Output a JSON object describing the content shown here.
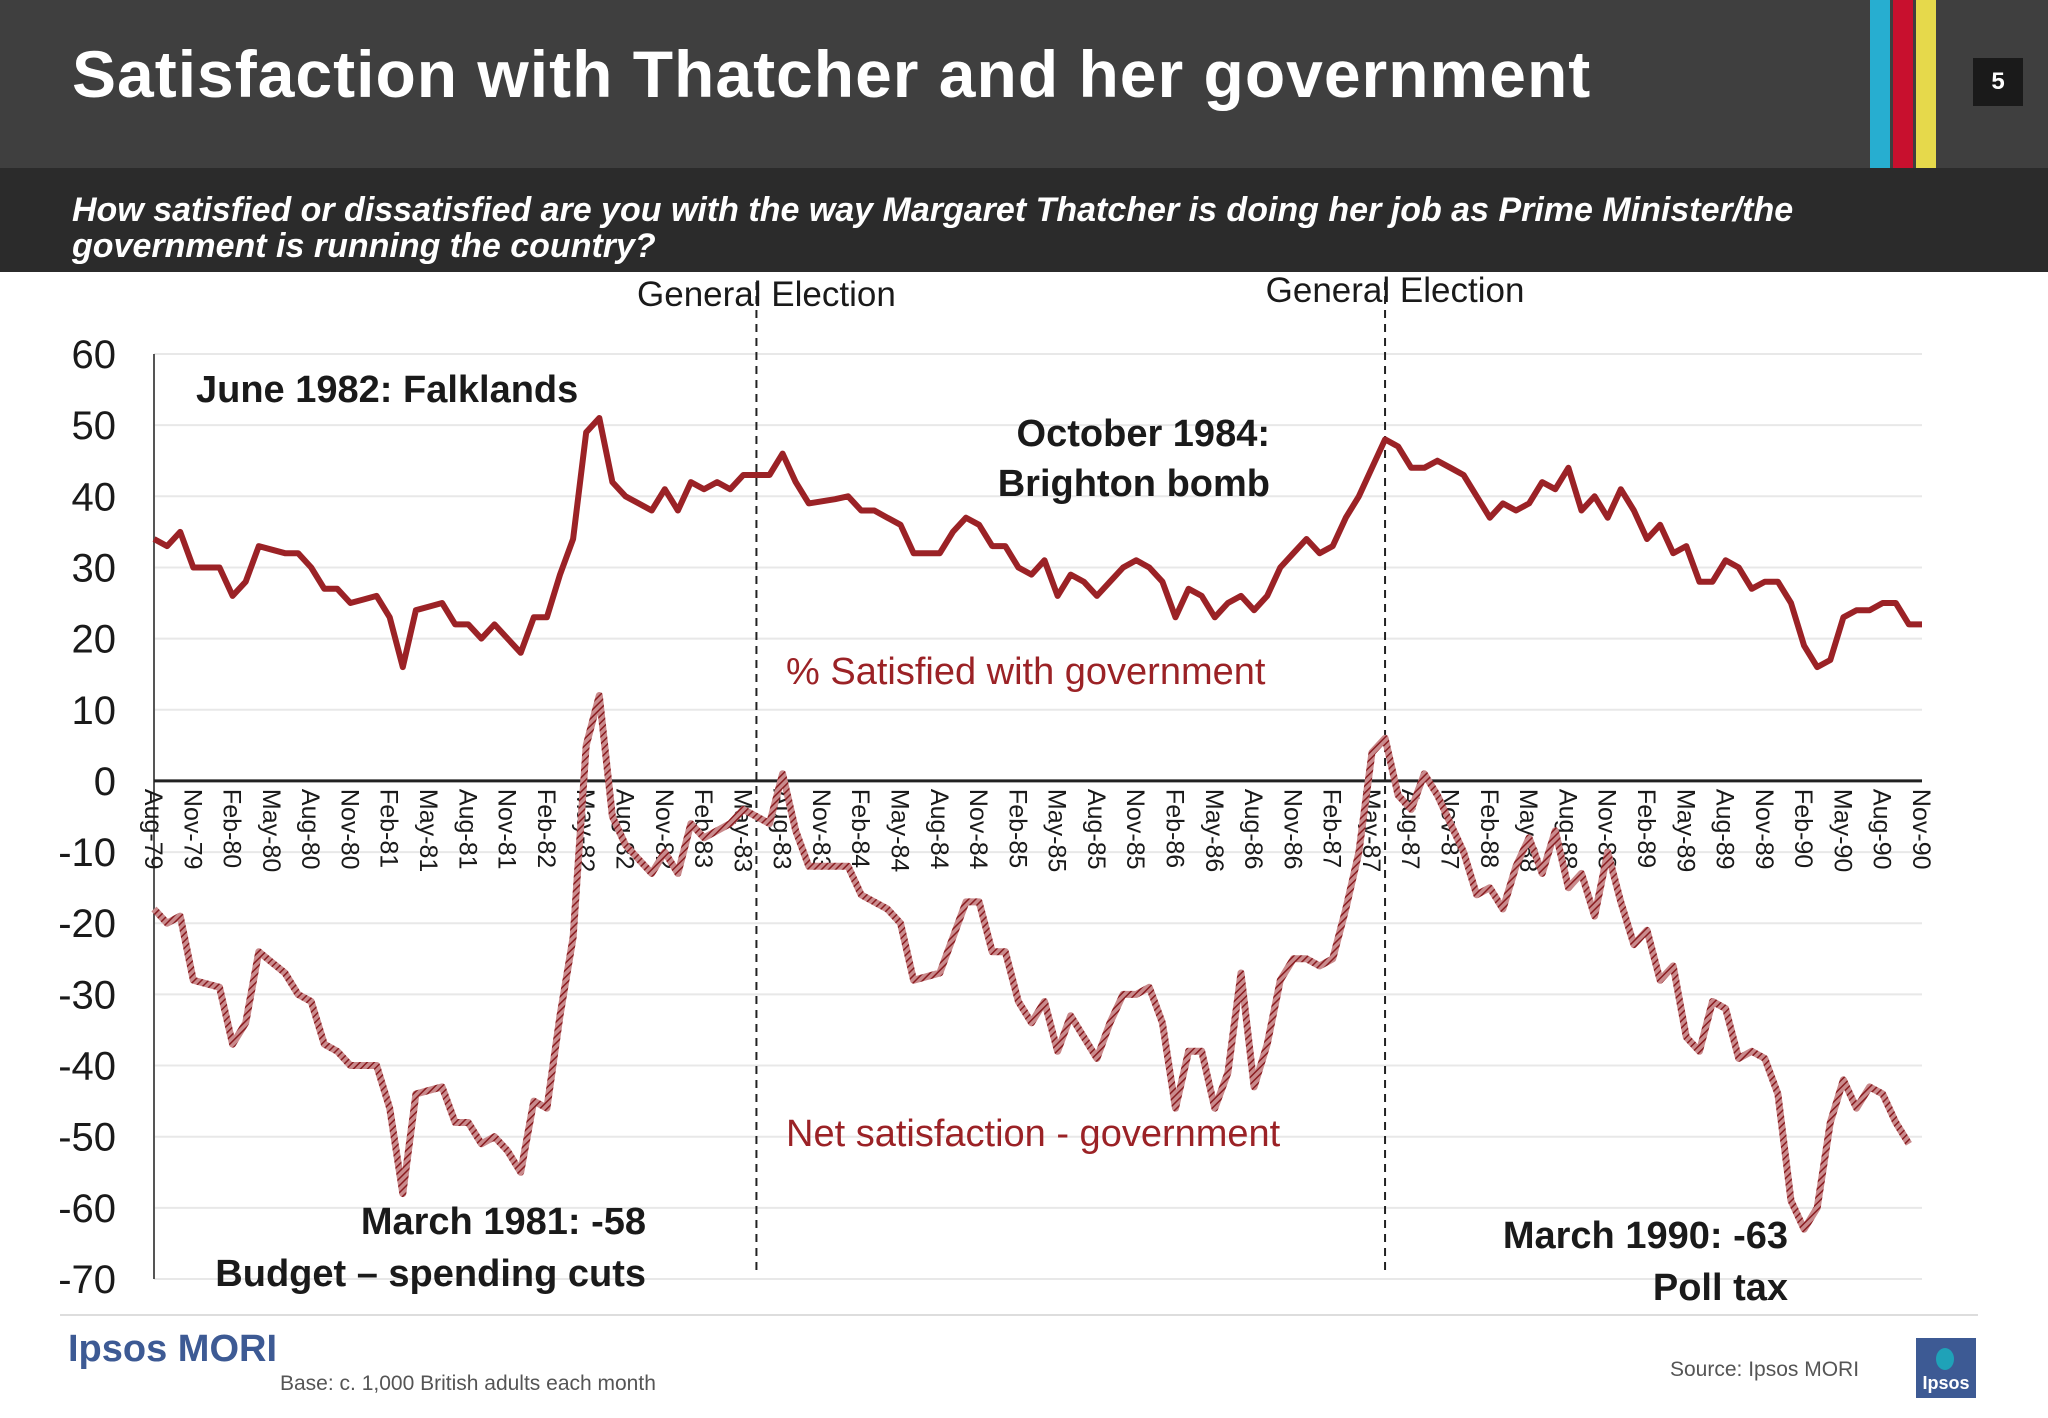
{
  "header": {
    "title": "Satisfaction with Thatcher and her government",
    "page_number": "5",
    "stripe_colors": [
      "#27aed0",
      "#c8102e",
      "#e6d94b"
    ]
  },
  "question": "How satisfied or dissatisfied are you with the way Margaret Thatcher is doing her job as Prime Minister/the government is running the country?",
  "footer": {
    "brand": "Ipsos MORI",
    "base": "Base: c. 1,000 British adults each month",
    "source": "Source: Ipsos MORI",
    "logo_text": "Ipsos"
  },
  "colors": {
    "series": "#9b2226",
    "gridline": "#e8e8e8",
    "text": "#1a1a1a"
  },
  "chart_data": {
    "type": "line",
    "title": "",
    "xlabel": "",
    "ylabel": "",
    "ylim": [
      -70,
      60
    ],
    "yticks": [
      60,
      50,
      40,
      30,
      20,
      10,
      0,
      -10,
      -20,
      -30,
      -40,
      -50,
      -60,
      -70
    ],
    "grid": true,
    "x_tick_labels": [
      "Aug-79",
      "Nov-79",
      "Feb-80",
      "May-80",
      "Aug-80",
      "Nov-80",
      "Feb-81",
      "May-81",
      "Aug-81",
      "Nov-81",
      "Feb-82",
      "May-82",
      "Aug-82",
      "Nov-82",
      "Feb-83",
      "May-83",
      "Aug-83",
      "Nov-83",
      "Feb-84",
      "May-84",
      "Aug-84",
      "Nov-84",
      "Feb-85",
      "May-85",
      "Aug-85",
      "Nov-85",
      "Feb-86",
      "May-86",
      "Aug-86",
      "Nov-86",
      "Feb-87",
      "May-87",
      "Aug-87",
      "Nov-87",
      "Feb-88",
      "May-88",
      "Aug-88",
      "Nov-88",
      "Feb-89",
      "May-89",
      "Aug-89",
      "Nov-89",
      "Feb-90",
      "May-90",
      "Aug-90",
      "Nov-90"
    ],
    "series": [
      {
        "name": "% Satisfied with government",
        "style": "solid",
        "values": [
          34,
          33,
          35,
          30,
          30,
          30,
          26,
          28,
          33,
          32.5,
          32,
          32,
          30,
          27,
          27,
          25,
          25.5,
          26,
          23,
          16,
          24,
          24.5,
          25,
          22,
          22,
          20,
          22,
          20,
          18,
          23,
          23,
          29,
          34,
          49,
          51,
          42,
          40,
          39,
          38,
          41,
          38,
          42,
          41,
          42,
          41,
          43,
          43,
          43,
          46,
          42,
          39,
          39.3,
          39.6,
          40,
          38,
          38,
          37,
          36,
          32,
          32,
          32,
          35,
          37,
          36,
          33,
          33,
          30,
          29,
          31,
          26,
          29,
          28,
          26,
          28,
          30,
          31,
          30,
          28,
          23,
          27,
          26,
          23,
          25,
          26,
          24,
          26,
          30,
          32,
          34,
          32,
          33,
          37,
          40,
          44,
          48,
          47,
          44,
          44,
          45,
          44,
          43,
          40,
          37,
          39,
          38,
          39,
          42,
          41,
          44,
          38,
          40,
          37,
          41,
          38,
          34,
          36,
          32,
          33,
          28,
          28,
          31,
          30,
          27,
          28,
          28,
          25,
          19,
          16,
          17,
          23,
          24,
          24,
          25,
          25,
          22,
          22
        ]
      },
      {
        "name": "Net satisfaction - government",
        "style": "hatched",
        "values": [
          -18,
          -20,
          -19,
          -28,
          -28.5,
          -29,
          -37,
          -34,
          -24,
          -25.5,
          -27,
          -30,
          -31,
          -37,
          -38,
          -40,
          -40,
          -40,
          -46,
          -58,
          -44,
          -43.5,
          -43,
          -48,
          -48,
          -51,
          -50,
          -52,
          -55,
          -45,
          -46,
          -33,
          -22,
          5,
          12,
          -5,
          -9,
          -11,
          -13,
          -10,
          -13,
          -6,
          -8,
          -7,
          -6,
          -4,
          -5,
          -6,
          1,
          -7,
          -12,
          -12,
          -12,
          -12,
          -16,
          -17,
          -18,
          -20,
          -28,
          -27.5,
          -27,
          -22,
          -17,
          -17,
          -24,
          -24,
          -31,
          -34,
          -31,
          -38,
          -33,
          -36,
          -39,
          -34,
          -30,
          -30,
          -29,
          -34,
          -46,
          -38,
          -38,
          -46,
          -41,
          -27,
          -43,
          -37,
          -28,
          -25,
          -25,
          -26,
          -25,
          -18,
          -10,
          4,
          6,
          -2,
          -4,
          1,
          -2,
          -6,
          -10,
          -16,
          -15,
          -18,
          -12,
          -8,
          -13,
          -7,
          -15,
          -13,
          -19,
          -10,
          -17,
          -23,
          -21,
          -28,
          -26,
          -36,
          -38,
          -31,
          -32,
          -39,
          -38,
          -39,
          -44,
          -59,
          -63,
          -60,
          -48,
          -42,
          -46,
          -43,
          -44,
          -48,
          -51
        ]
      }
    ],
    "reference_lines": [
      {
        "label": "General Election",
        "date": "Jun-83"
      },
      {
        "label": "General Election",
        "date": "Jun-87"
      }
    ],
    "annotations": [
      {
        "id": "falklands",
        "lines": [
          "June 1982: Falklands"
        ]
      },
      {
        "id": "brighton",
        "lines": [
          "October 1984:",
          "Brighton bomb"
        ]
      },
      {
        "id": "satisfied-label",
        "lines": [
          "% Satisfied with government"
        ]
      },
      {
        "id": "net-label",
        "lines": [
          "Net satisfaction - government"
        ]
      },
      {
        "id": "march1981",
        "lines": [
          "March 1981: -58",
          "Budget – spending cuts"
        ]
      },
      {
        "id": "march1990",
        "lines": [
          "March 1990: -63",
          "Poll tax"
        ]
      }
    ]
  }
}
